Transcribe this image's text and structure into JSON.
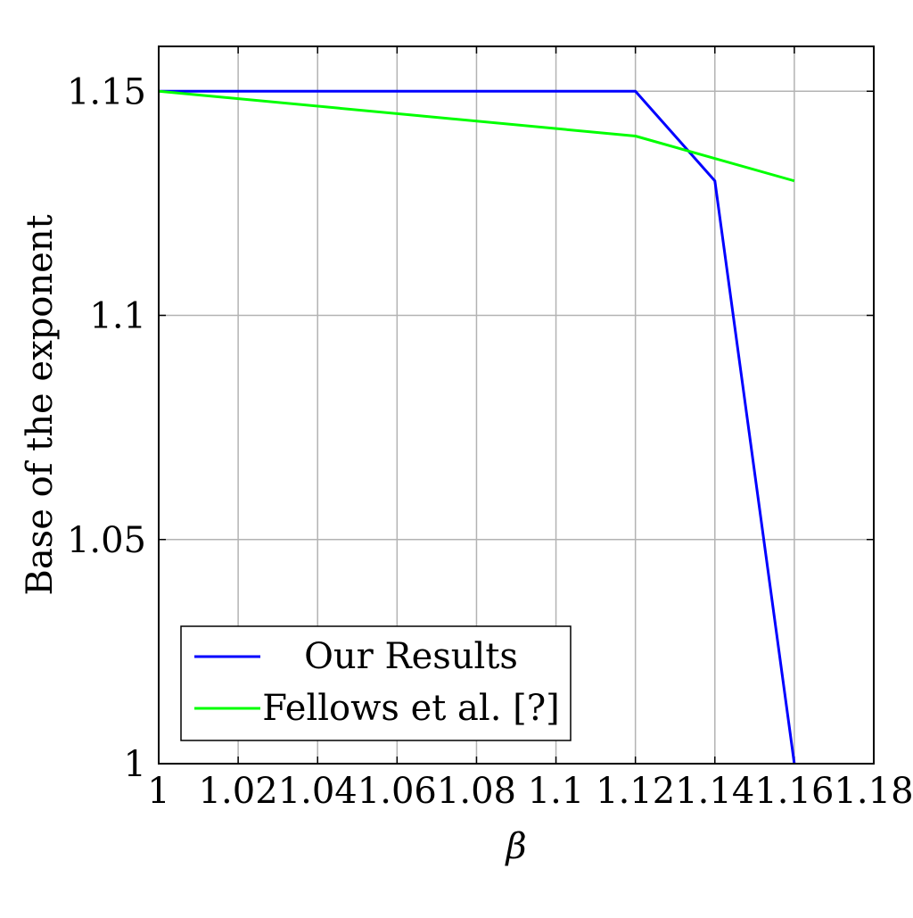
{
  "chart_data": {
    "type": "line",
    "title": "",
    "xlabel": "β",
    "ylabel": "Base of the exponent",
    "xlim": [
      1,
      1.18
    ],
    "ylim": [
      1,
      1.16
    ],
    "x_ticks": [
      1,
      1.02,
      1.04,
      1.06,
      1.08,
      1.1,
      1.12,
      1.14,
      1.16,
      1.18
    ],
    "x_tick_labels": [
      "1",
      "1.02",
      "1.04",
      "1.06",
      "1.08",
      "1.1",
      "1.12",
      "1.14",
      "1.16",
      "1.18"
    ],
    "y_ticks": [
      1,
      1.05,
      1.1,
      1.15
    ],
    "y_tick_labels": [
      "1",
      "1.05",
      "1.1",
      "1.15"
    ],
    "grid": true,
    "legend_position": "bottom-left",
    "series": [
      {
        "name": "Our Results",
        "color": "#0000ff",
        "points": [
          [
            1,
            1.15
          ],
          [
            1.12,
            1.15
          ],
          [
            1.14,
            1.13
          ],
          [
            1.16,
            1.0
          ]
        ]
      },
      {
        "name": "Fellows et al. [?]",
        "color": "#00ff00",
        "points": [
          [
            1,
            1.15
          ],
          [
            1.12,
            1.14
          ],
          [
            1.16,
            1.13
          ]
        ]
      }
    ]
  }
}
